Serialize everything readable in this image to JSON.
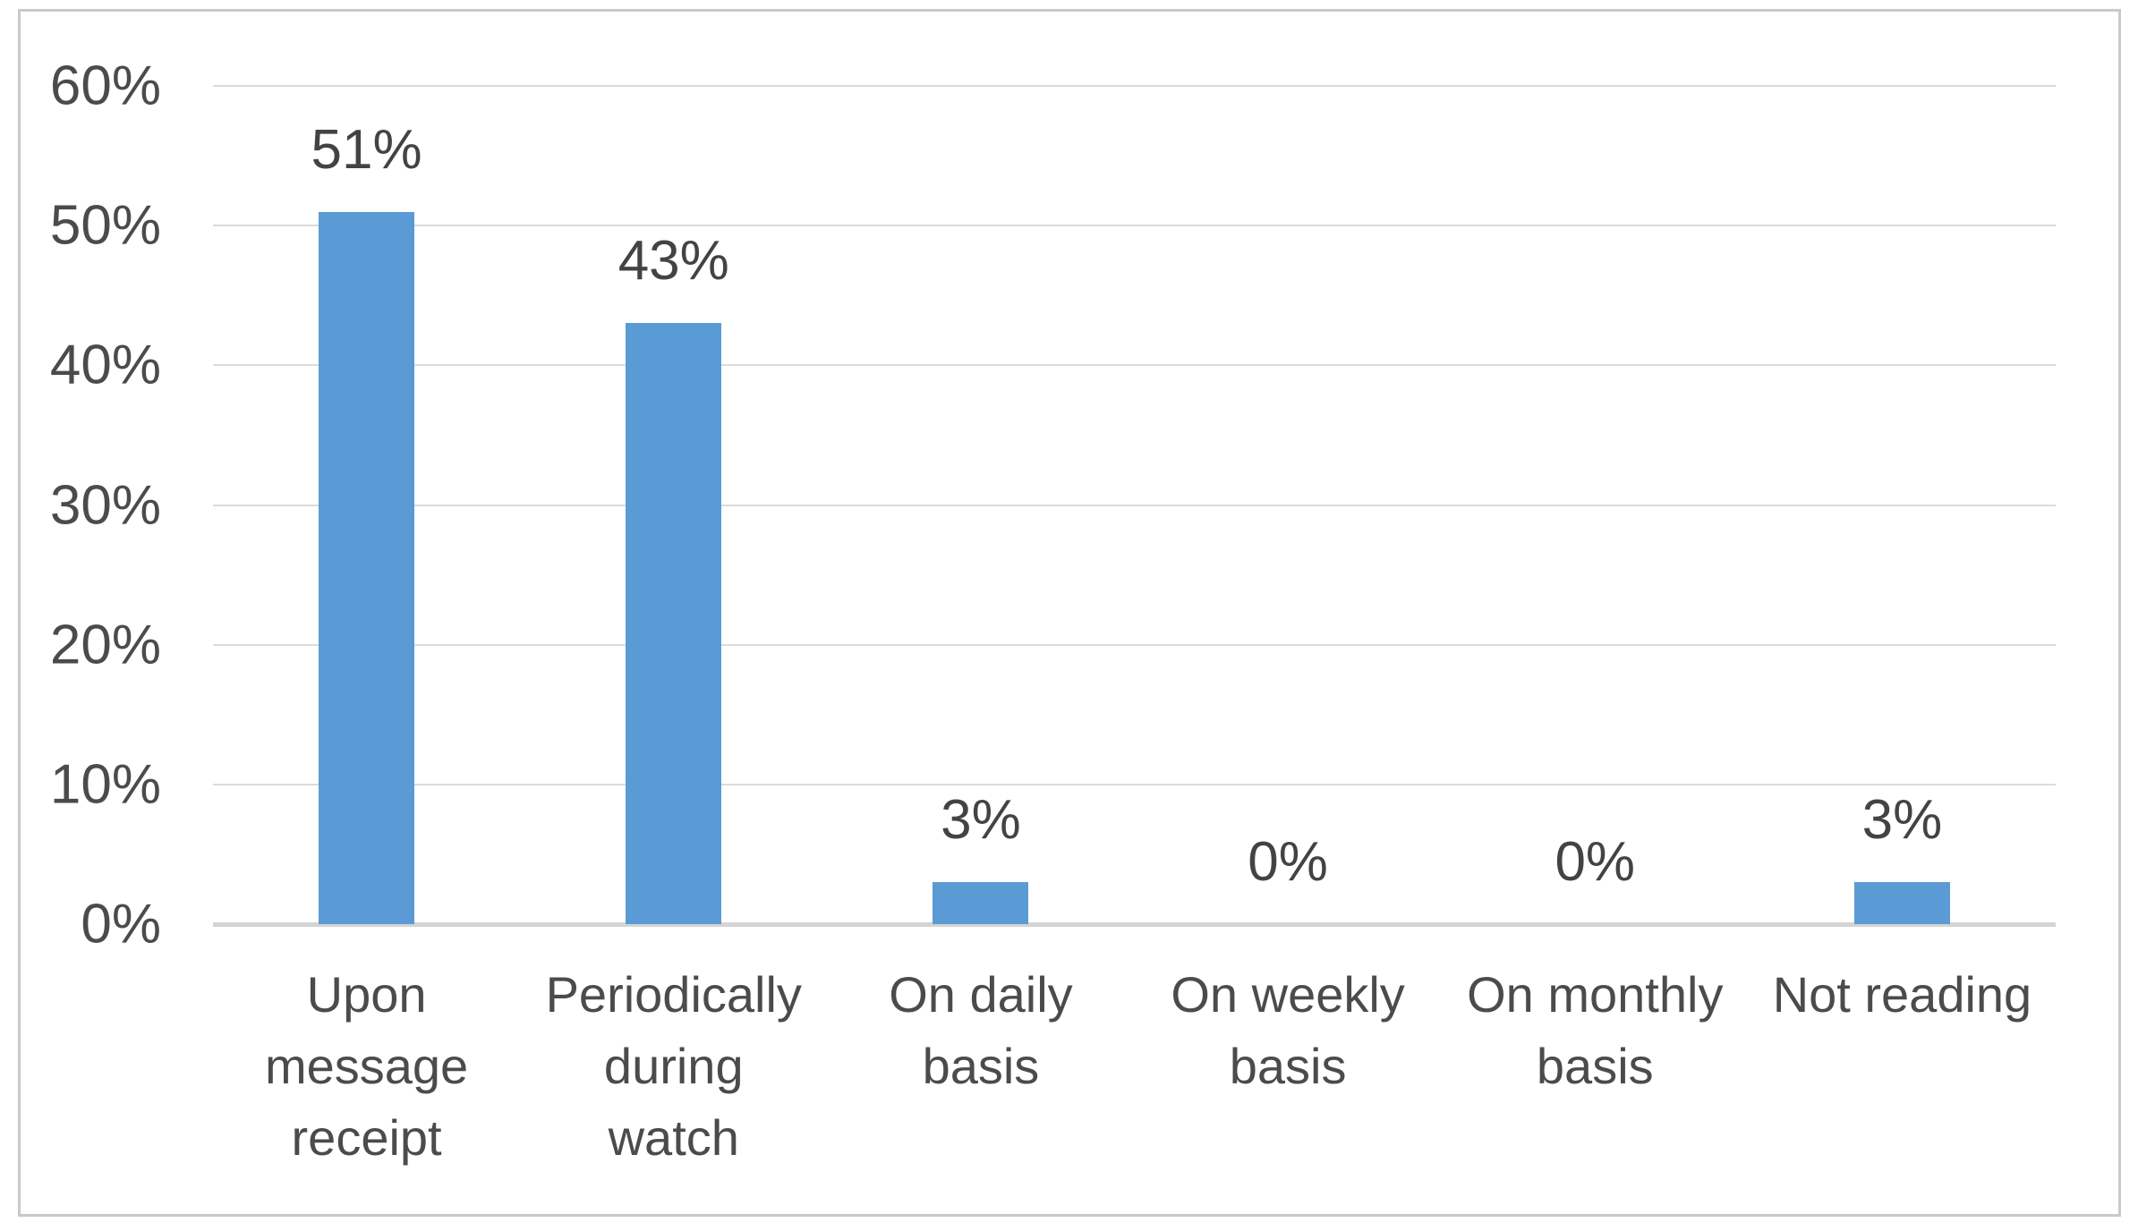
{
  "chart_data": {
    "type": "bar",
    "title": "",
    "xlabel": "",
    "ylabel": "",
    "categories": [
      "Upon message receipt",
      "Periodically during watch",
      "On daily basis",
      "On weekly basis",
      "On monthly basis",
      "Not reading"
    ],
    "categories_display": [
      "Upon\nmessage\nreceipt",
      "Periodically\nduring\nwatch",
      "On daily\nbasis",
      "On weekly\nbasis",
      "On monthly\nbasis",
      "Not reading"
    ],
    "values": [
      51,
      43,
      3,
      0,
      0,
      3
    ],
    "value_labels": [
      "51%",
      "43%",
      "3%",
      "0%",
      "0%",
      "3%"
    ],
    "y_tick_values": [
      0,
      10,
      20,
      30,
      40,
      50,
      60
    ],
    "y_tick_labels": [
      "0%",
      "10%",
      "20%",
      "30%",
      "40%",
      "50%",
      "60%"
    ],
    "ylim": [
      0,
      60
    ],
    "grid": true,
    "legend": "none",
    "bar_color": "#5B9BD5",
    "gridline_color": "#DBDBDB",
    "axis_line_color": "#D4D4D4",
    "text_color": "#4B4B4B",
    "data_label_color": "#434343",
    "frame_border_color": "#C9C9C9",
    "background": "#FFFFFF"
  }
}
